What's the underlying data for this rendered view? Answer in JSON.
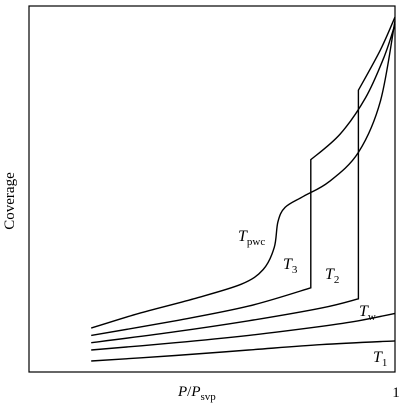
{
  "chart_data": {
    "type": "line",
    "xlabel": {
      "main": "P",
      "slash": "/",
      "main2": "P",
      "sub": "svp"
    },
    "ylabel": "Coverage",
    "x_tick_end": "1",
    "xlim": [
      0,
      1
    ],
    "ylim": [
      0,
      1
    ],
    "grid": false,
    "series": [
      {
        "name": "T1",
        "label_main": "T",
        "label_sub": "1",
        "points": [
          [
            0.17,
            0.03
          ],
          [
            0.4,
            0.045
          ],
          [
            0.6,
            0.06
          ],
          [
            0.8,
            0.075
          ],
          [
            1.0,
            0.085
          ]
        ]
      },
      {
        "name": "Tw",
        "label_main": "T",
        "label_sub": "w",
        "points": [
          [
            0.17,
            0.06
          ],
          [
            0.4,
            0.08
          ],
          [
            0.6,
            0.1
          ],
          [
            0.8,
            0.125
          ],
          [
            0.9,
            0.14
          ],
          [
            1.0,
            0.16
          ]
        ]
      },
      {
        "name": "T2",
        "label_main": "T",
        "label_sub": "2",
        "points": [
          [
            0.17,
            0.08
          ],
          [
            0.4,
            0.11
          ],
          [
            0.6,
            0.14
          ],
          [
            0.8,
            0.175
          ],
          [
            0.9,
            0.2
          ],
          [
            0.9,
            0.77
          ],
          [
            0.96,
            0.88
          ],
          [
            1.0,
            0.97
          ]
        ]
      },
      {
        "name": "T3",
        "label_main": "T",
        "label_sub": "3",
        "points": [
          [
            0.17,
            0.1
          ],
          [
            0.4,
            0.14
          ],
          [
            0.6,
            0.18
          ],
          [
            0.77,
            0.23
          ],
          [
            0.77,
            0.58
          ],
          [
            0.85,
            0.65
          ],
          [
            0.92,
            0.75
          ],
          [
            0.97,
            0.86
          ],
          [
            1.0,
            0.95
          ]
        ]
      },
      {
        "name": "Tpwc",
        "label_main": "T",
        "label_sub": "pwc",
        "points": [
          [
            0.17,
            0.12
          ],
          [
            0.3,
            0.16
          ],
          [
            0.45,
            0.2
          ],
          [
            0.58,
            0.24
          ],
          [
            0.64,
            0.28
          ],
          [
            0.67,
            0.34
          ],
          [
            0.68,
            0.41
          ],
          [
            0.7,
            0.45
          ],
          [
            0.75,
            0.48
          ],
          [
            0.82,
            0.52
          ],
          [
            0.9,
            0.6
          ],
          [
            0.96,
            0.74
          ],
          [
            1.0,
            0.96
          ]
        ]
      }
    ]
  }
}
